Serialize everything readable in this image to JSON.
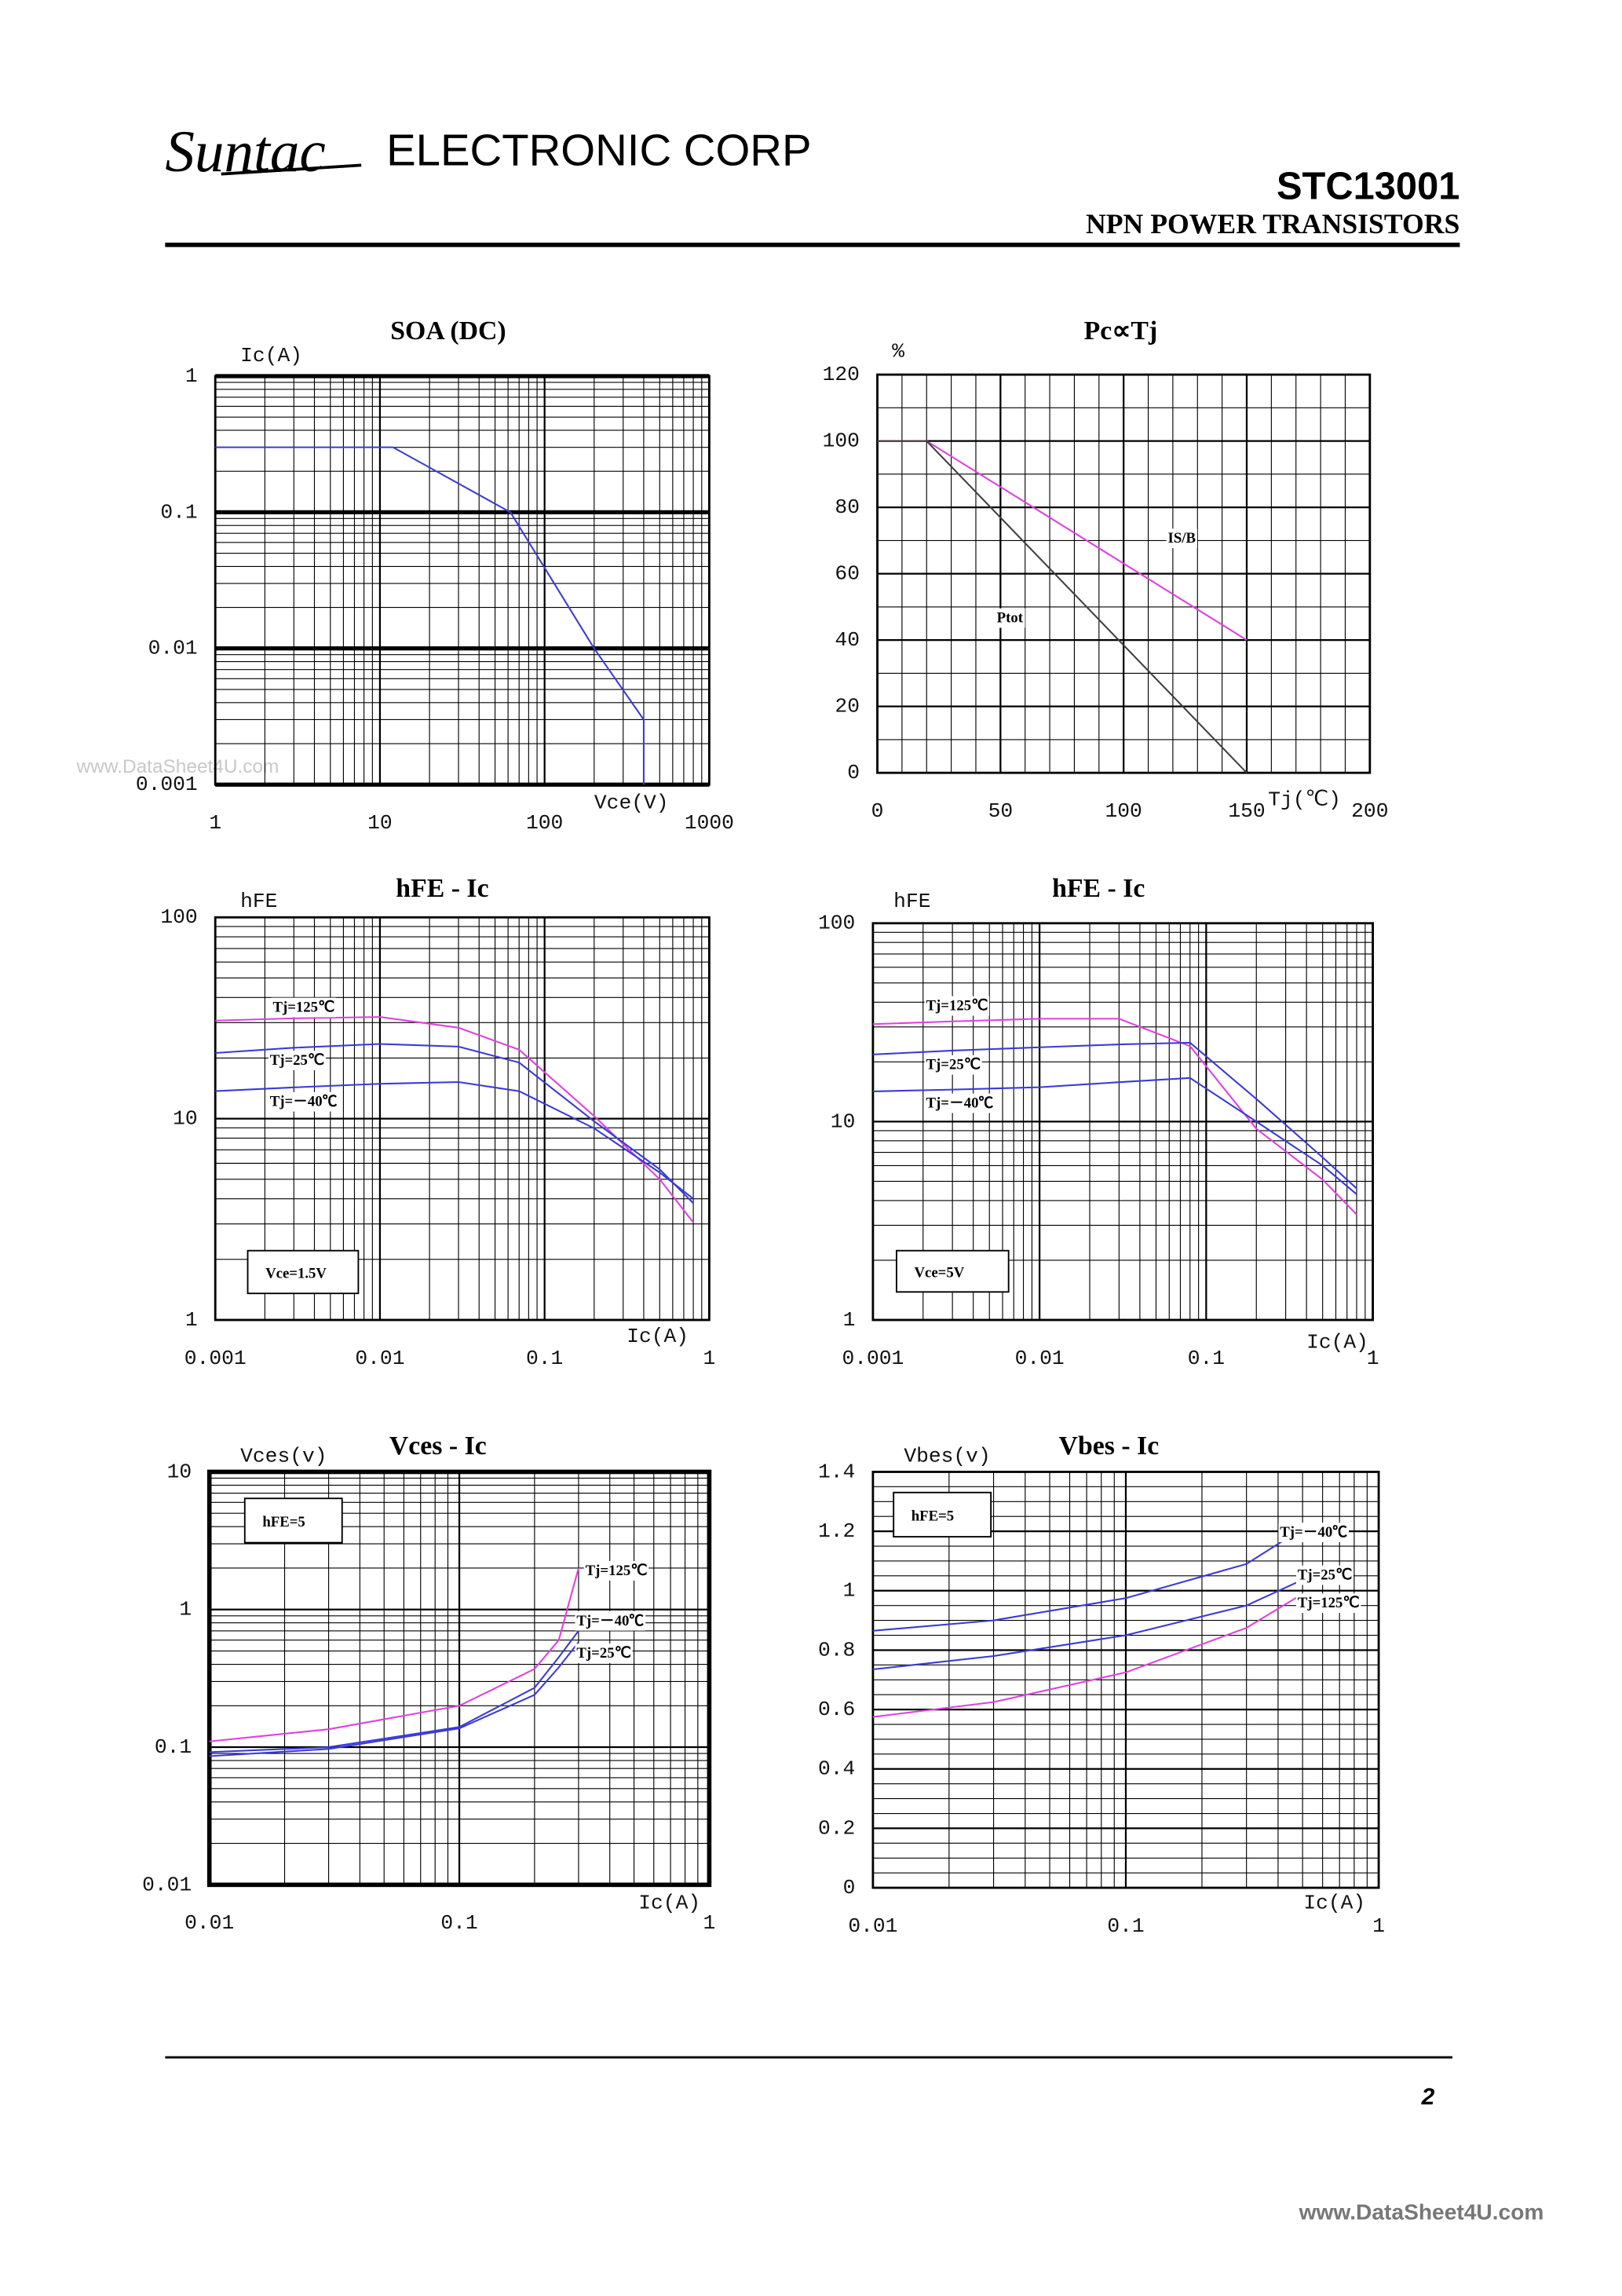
{
  "header": {
    "logo": "Suntac",
    "company": "ELECTRONIC CORP",
    "part": "STC13001",
    "subtitle": "NPN POWER TRANSISTORS"
  },
  "watermark": "www.DataSheet4U.com",
  "footer": {
    "page": "2",
    "site": "www.DataSheet4U.com"
  },
  "chart_data": [
    {
      "type": "line",
      "title": "SOA (DC)",
      "ylabel": "Ic(A)",
      "xlabel": "Vce(V)",
      "xscale": "log",
      "yscale": "log",
      "xlim": [
        1,
        1000
      ],
      "ylim": [
        0.001,
        1
      ],
      "xticks": [
        1,
        10,
        100,
        1000
      ],
      "yticks": [
        0.001,
        0.01,
        0.1,
        1
      ],
      "grid": true,
      "bold_major_grid": true,
      "xgrid": [
        2,
        3,
        4,
        5,
        6,
        7,
        8,
        9,
        20,
        30,
        40,
        50,
        60,
        70,
        80,
        90,
        200,
        300,
        400,
        500,
        600,
        700,
        800,
        900
      ],
      "ygrid": [
        0.002,
        0.003,
        0.004,
        0.005,
        0.006,
        0.007,
        0.008,
        0.009,
        0.02,
        0.03,
        0.04,
        0.05,
        0.06,
        0.07,
        0.08,
        0.09,
        0.2,
        0.3,
        0.4,
        0.5,
        0.6,
        0.7,
        0.8,
        0.9
      ],
      "series": [
        {
          "color": "#3a3ad6",
          "x": [
            1,
            12,
            62,
            200,
            400,
            400
          ],
          "values": [
            0.3,
            0.3,
            0.1,
            0.01,
            0.003,
            0.001
          ]
        }
      ]
    },
    {
      "type": "line",
      "title": "Pc∝Tj",
      "ylabel": "%",
      "xlabel": "Tj(℃)",
      "xscale": "linear",
      "yscale": "linear",
      "xlim": [
        0,
        200
      ],
      "ylim": [
        0,
        120
      ],
      "xticks": [
        0,
        50,
        100,
        150,
        200
      ],
      "yticks": [
        0,
        20,
        40,
        60,
        80,
        100,
        120
      ],
      "grid": true,
      "xgrid": [
        10,
        20,
        30,
        40,
        60,
        70,
        80,
        90,
        110,
        120,
        130,
        140,
        160,
        170,
        180,
        190
      ],
      "ygrid": [
        10,
        30,
        50,
        70,
        90,
        110
      ],
      "series": [
        {
          "name": "IS/B",
          "color": "#e040e0",
          "x": [
            0,
            20,
            150
          ],
          "values": [
            100,
            100,
            40
          ]
        },
        {
          "name": "Ptot",
          "color": "#404040",
          "x": [
            0,
            20,
            150
          ],
          "values": [
            100,
            100,
            0
          ]
        }
      ]
    },
    {
      "type": "line",
      "title": "hFE - Ic",
      "ylabel": "hFE",
      "xlabel": "Ic(A)",
      "annotation": "Vce=1.5V",
      "xscale": "log",
      "yscale": "log",
      "xlim": [
        0.001,
        1
      ],
      "ylim": [
        1,
        100
      ],
      "xticks": [
        0.001,
        0.01,
        0.1,
        1
      ],
      "yticks": [
        1,
        10,
        100
      ],
      "grid": true,
      "xgrid": [
        0.002,
        0.003,
        0.004,
        0.005,
        0.006,
        0.007,
        0.008,
        0.009,
        0.02,
        0.03,
        0.04,
        0.05,
        0.06,
        0.07,
        0.08,
        0.09,
        0.2,
        0.3,
        0.4,
        0.5,
        0.6,
        0.7,
        0.8,
        0.9
      ],
      "ygrid": [
        2,
        3,
        4,
        5,
        6,
        7,
        8,
        9,
        20,
        30,
        40,
        50,
        60,
        70,
        80,
        90
      ],
      "series": [
        {
          "name": "Tj=125℃",
          "color": "#e040e0",
          "x": [
            0.001,
            0.003,
            0.01,
            0.03,
            0.07,
            0.2,
            0.5,
            0.8
          ],
          "values": [
            30.7,
            31.5,
            32,
            28.3,
            22,
            10.3,
            5,
            3.05
          ]
        },
        {
          "name": "Tj=25℃",
          "color": "#3a3ad6",
          "x": [
            0.001,
            0.003,
            0.01,
            0.03,
            0.07,
            0.2,
            0.5,
            0.8
          ],
          "values": [
            21.2,
            22.5,
            23.5,
            22.8,
            19,
            9.7,
            5.6,
            3.8
          ]
        },
        {
          "name": "Tj=－40℃",
          "color": "#3a3ad6",
          "x": [
            0.001,
            0.003,
            0.01,
            0.03,
            0.07,
            0.2,
            0.5,
            0.8
          ],
          "values": [
            13.7,
            14.3,
            14.9,
            15.2,
            13.7,
            8.95,
            5.4,
            4.0
          ]
        }
      ]
    },
    {
      "type": "line",
      "title": "hFE - Ic",
      "ylabel": "hFE",
      "xlabel": "Ic(A)",
      "annotation": "Vce=5V",
      "xscale": "log",
      "yscale": "log",
      "xlim": [
        0.001,
        1
      ],
      "ylim": [
        1,
        100
      ],
      "xticks": [
        0.001,
        0.01,
        0.1,
        1
      ],
      "yticks": [
        1,
        10,
        100
      ],
      "grid": true,
      "xgrid": [
        0.002,
        0.003,
        0.004,
        0.005,
        0.006,
        0.007,
        0.008,
        0.009,
        0.02,
        0.03,
        0.04,
        0.05,
        0.06,
        0.07,
        0.08,
        0.09,
        0.2,
        0.3,
        0.4,
        0.5,
        0.6,
        0.7,
        0.8,
        0.9
      ],
      "ygrid": [
        2,
        3,
        4,
        5,
        6,
        7,
        8,
        9,
        20,
        30,
        40,
        50,
        60,
        70,
        80,
        90
      ],
      "series": [
        {
          "name": "Tj=125℃",
          "color": "#e040e0",
          "x": [
            0.001,
            0.003,
            0.01,
            0.03,
            0.08,
            0.2,
            0.5,
            0.8
          ],
          "values": [
            31,
            32,
            33,
            33,
            24,
            9.2,
            5.1,
            3.4
          ]
        },
        {
          "name": "Tj=25℃",
          "color": "#3a3ad6",
          "x": [
            0.001,
            0.003,
            0.01,
            0.03,
            0.08,
            0.2,
            0.5,
            0.8
          ],
          "values": [
            21.8,
            22.8,
            23.7,
            24.5,
            25,
            13,
            6.6,
            4.6
          ]
        },
        {
          "name": "Tj=－40℃",
          "color": "#3a3ad6",
          "x": [
            0.001,
            0.003,
            0.01,
            0.03,
            0.08,
            0.2,
            0.5,
            0.8
          ],
          "values": [
            14.2,
            14.5,
            14.9,
            15.8,
            16.6,
            10,
            6,
            4.3
          ]
        }
      ]
    },
    {
      "type": "line",
      "title": "Vces - Ic",
      "ylabel": "Vces(v)",
      "xlabel": "Ic(A)",
      "annotation": "hFE=5",
      "xscale": "log",
      "yscale": "log",
      "xlim": [
        0.01,
        1
      ],
      "ylim": [
        0.01,
        10
      ],
      "xticks": [
        0.01,
        0.1,
        1
      ],
      "yticks": [
        0.01,
        0.1,
        1,
        10
      ],
      "grid": true,
      "bold_frame": true,
      "xgrid": [
        0.02,
        0.03,
        0.04,
        0.05,
        0.06,
        0.07,
        0.08,
        0.09,
        0.2,
        0.3,
        0.4,
        0.5,
        0.6,
        0.7,
        0.8,
        0.9
      ],
      "ygrid": [
        0.02,
        0.03,
        0.04,
        0.05,
        0.06,
        0.07,
        0.08,
        0.09,
        0.2,
        0.3,
        0.4,
        0.5,
        0.6,
        0.7,
        0.8,
        0.9,
        2,
        3,
        4,
        5,
        6,
        7,
        8,
        9
      ],
      "series": [
        {
          "name": "Tj=125℃",
          "color": "#e040e0",
          "x": [
            0.01,
            0.03,
            0.1,
            0.2,
            0.25,
            0.3
          ],
          "values": [
            0.11,
            0.135,
            0.2,
            0.37,
            0.6,
            2.0
          ]
        },
        {
          "name": "Tj=－40℃",
          "color": "#3a3ad6",
          "x": [
            0.01,
            0.03,
            0.1,
            0.2,
            0.25,
            0.3
          ],
          "values": [
            0.092,
            0.1,
            0.14,
            0.27,
            0.45,
            0.7
          ]
        },
        {
          "name": "Tj=25℃",
          "color": "#3a3ad6",
          "x": [
            0.01,
            0.03,
            0.1,
            0.2,
            0.25,
            0.3
          ],
          "values": [
            0.086,
            0.097,
            0.137,
            0.24,
            0.38,
            0.58
          ]
        }
      ]
    },
    {
      "type": "line",
      "title": "Vbes - Ic",
      "ylabel": "Vbes(v)",
      "xlabel": "Ic(A)",
      "annotation": "hFE=5",
      "xscale": "log",
      "yscale": "linear",
      "xlim": [
        0.01,
        1
      ],
      "ylim": [
        0,
        1.4
      ],
      "xticks": [
        0.01,
        0.1,
        1
      ],
      "yticks": [
        0,
        0.2,
        0.4,
        0.6,
        0.8,
        1,
        1.2,
        1.4
      ],
      "grid": true,
      "xgrid": [
        0.02,
        0.03,
        0.04,
        0.05,
        0.06,
        0.07,
        0.08,
        0.09,
        0.2,
        0.3,
        0.4,
        0.5,
        0.6,
        0.7,
        0.8,
        0.9
      ],
      "ygrid": [
        0.05,
        0.1,
        0.15,
        0.25,
        0.3,
        0.35,
        0.45,
        0.5,
        0.55,
        0.65,
        0.7,
        0.75,
        0.85,
        0.9,
        0.95,
        1.05,
        1.1,
        1.15,
        1.25,
        1.3,
        1.35
      ],
      "series": [
        {
          "name": "Tj=－40℃",
          "color": "#3a3ad6",
          "x": [
            0.01,
            0.03,
            0.1,
            0.3,
            0.48
          ],
          "values": [
            0.865,
            0.9,
            0.975,
            1.09,
            1.2
          ]
        },
        {
          "name": "Tj=25℃",
          "color": "#3a3ad6",
          "x": [
            0.01,
            0.03,
            0.1,
            0.3,
            0.48
          ],
          "values": [
            0.735,
            0.78,
            0.85,
            0.95,
            1.03
          ]
        },
        {
          "name": "Tj=125℃",
          "color": "#e040e0",
          "x": [
            0.01,
            0.03,
            0.1,
            0.3,
            0.48
          ],
          "values": [
            0.575,
            0.625,
            0.725,
            0.875,
            0.98
          ]
        }
      ]
    }
  ]
}
